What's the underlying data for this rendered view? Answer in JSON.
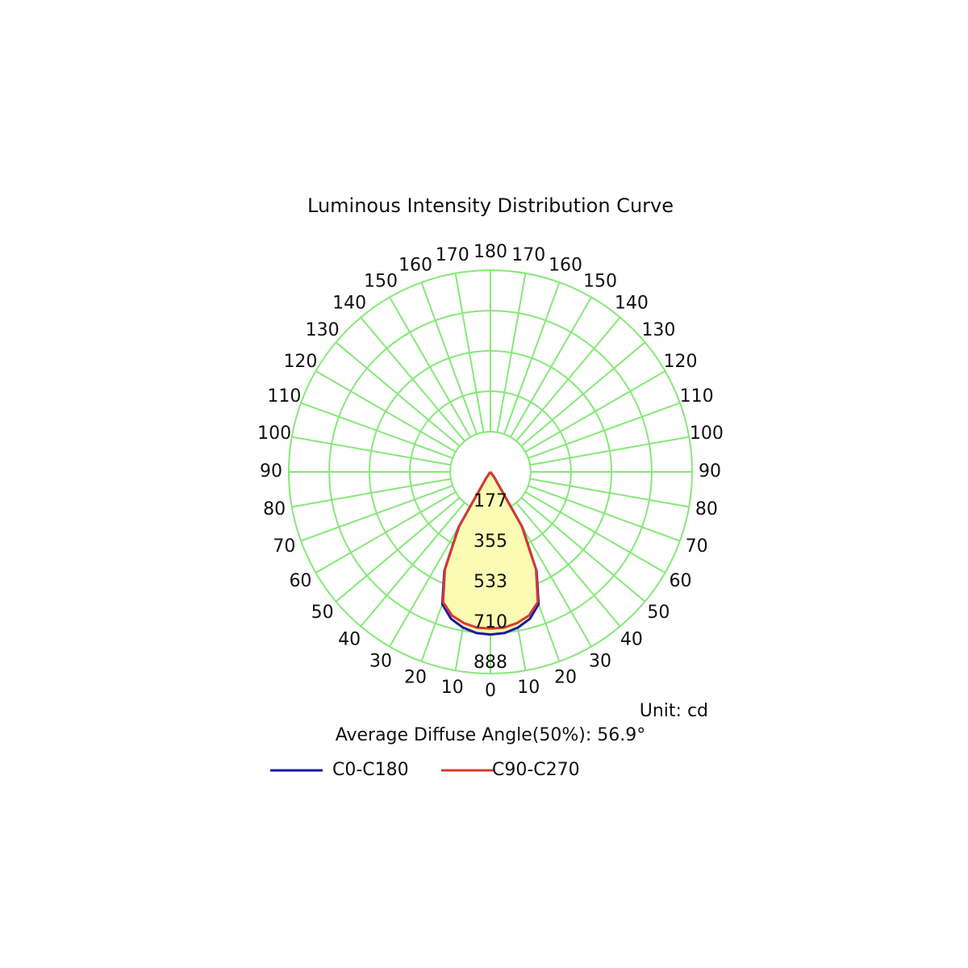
{
  "chart_data": {
    "type": "polar",
    "title": "Luminous Intensity Distribution Curve",
    "unit": "Unit: cd",
    "annotation": "Average Diffuse Angle(50%): 56.9°",
    "angles": [
      0,
      5,
      10,
      15,
      20,
      25,
      30,
      35,
      40
    ],
    "series": [
      {
        "name": "C0-C180",
        "color": "#1a1aa8",
        "values": [
          716,
          712,
          696,
          670,
          620,
          480,
          280,
          30,
          0
        ]
      },
      {
        "name": "C90-C270",
        "color": "#d63a2e",
        "values": [
          690,
          688,
          676,
          655,
          610,
          475,
          275,
          30,
          0
        ]
      }
    ],
    "rlim": [
      0,
      888
    ],
    "rticks": [
      177,
      355,
      533,
      710,
      888
    ],
    "angle_ticks": [
      0,
      10,
      20,
      30,
      40,
      50,
      60,
      70,
      80,
      90,
      100,
      110,
      120,
      130,
      140,
      150,
      160,
      170,
      180
    ],
    "fill_color": "#fbfbb4",
    "grid": true
  }
}
